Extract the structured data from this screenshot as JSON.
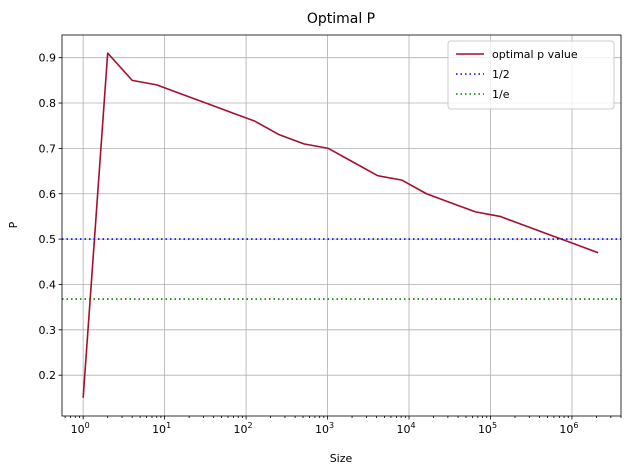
{
  "chart_data": {
    "type": "line",
    "title": "Optimal P",
    "xlabel": "Size",
    "ylabel": "P",
    "xscale": "log",
    "xlim": [
      0.55,
      4000000
    ],
    "ylim": [
      0.11,
      0.95
    ],
    "grid": true,
    "legend_position": "top-right",
    "x_ticks": [
      {
        "value": 1,
        "base": "10",
        "exp": "0"
      },
      {
        "value": 10,
        "base": "10",
        "exp": "1"
      },
      {
        "value": 100,
        "base": "10",
        "exp": "2"
      },
      {
        "value": 1000,
        "base": "10",
        "exp": "3"
      },
      {
        "value": 10000,
        "base": "10",
        "exp": "4"
      },
      {
        "value": 100000,
        "base": "10",
        "exp": "5"
      },
      {
        "value": 1000000,
        "base": "10",
        "exp": "6"
      }
    ],
    "y_ticks": [
      {
        "value": 0.2,
        "label": "0.2"
      },
      {
        "value": 0.3,
        "label": "0.3"
      },
      {
        "value": 0.4,
        "label": "0.4"
      },
      {
        "value": 0.5,
        "label": "0.5"
      },
      {
        "value": 0.6,
        "label": "0.6"
      },
      {
        "value": 0.7,
        "label": "0.7"
      },
      {
        "value": 0.8,
        "label": "0.8"
      },
      {
        "value": 0.9,
        "label": "0.9"
      }
    ],
    "series": [
      {
        "name": "optimal p value",
        "color": "#a50f2d",
        "style": "solid",
        "x": [
          1,
          2,
          4,
          8,
          16,
          32,
          64,
          128,
          256,
          512,
          1024,
          2048,
          4096,
          8192,
          16384,
          32768,
          65536,
          131072,
          262144,
          524288,
          1048576,
          2097152
        ],
        "y": [
          0.15,
          0.91,
          0.85,
          0.84,
          0.82,
          0.8,
          0.78,
          0.76,
          0.73,
          0.71,
          0.7,
          0.67,
          0.64,
          0.63,
          0.6,
          0.58,
          0.56,
          0.55,
          0.53,
          0.51,
          0.49,
          0.47
        ]
      },
      {
        "name": "1/2",
        "color": "#0000ff",
        "style": "dotted",
        "hline": 0.5
      },
      {
        "name": "1/e",
        "color": "#008000",
        "style": "dotted",
        "hline": 0.3679
      }
    ]
  }
}
